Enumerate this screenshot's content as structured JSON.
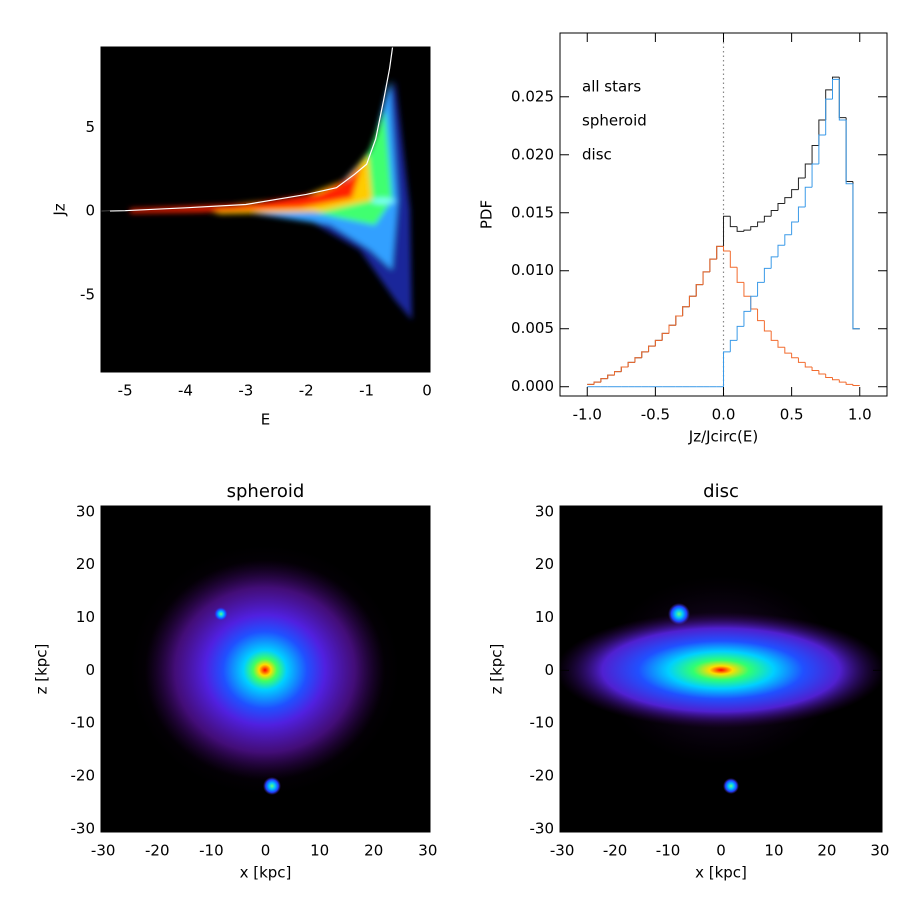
{
  "chart_data": [
    {
      "type": "density",
      "x_label": "E",
      "y_label": "Jz",
      "xlim": [
        -5.4,
        0.05
      ],
      "xticks": [
        -5,
        -4,
        -3,
        -2,
        -1,
        0
      ],
      "ylim": [
        -9.6,
        9.8
      ],
      "yticks": [
        -5,
        0,
        5
      ],
      "x": [
        -5.4,
        -5,
        -4,
        -3,
        -2,
        -1.5,
        -1.2,
        -1,
        -0.85,
        -0.72,
        -0.62,
        -0.57
      ],
      "series": [
        {
          "color": "#ffffff",
          "values": [
            0,
            0.03,
            0.2,
            0.4,
            1.0,
            1.4,
            2.2,
            2.8,
            4.3,
            6.6,
            8.5,
            9.8
          ]
        }
      ]
    },
    {
      "type": "histogram",
      "x_label": "Jz/Jcirc(E)",
      "y_label": "PDF",
      "xlim": [
        -1.2,
        1.2
      ],
      "xticks": [
        {
          "value": -1,
          "label": "-1.0"
        },
        -0.5,
        {
          "value": 0,
          "label": "0.0"
        },
        0.5,
        {
          "value": 1,
          "label": "1.0"
        }
      ],
      "ylim": [
        -0.0008,
        0.0305
      ],
      "yticks": [
        {
          "value": 0,
          "label": "0.000"
        },
        {
          "value": 0.005,
          "label": "0.005"
        },
        {
          "value": 0.01,
          "label": "0.010"
        },
        {
          "value": 0.015,
          "label": "0.015"
        },
        {
          "value": 0.02,
          "label": "0.020"
        },
        {
          "value": 0.025,
          "label": "0.025"
        }
      ],
      "vline": 0,
      "bins": [
        -1,
        -0.95,
        -0.9,
        -0.85,
        -0.8,
        -0.75,
        -0.7,
        -0.65,
        -0.6,
        -0.55,
        -0.5,
        -0.45,
        -0.4,
        -0.35,
        -0.3,
        -0.25,
        -0.2,
        -0.15,
        -0.1,
        -0.05,
        0,
        0.05,
        0.1,
        0.15,
        0.2,
        0.25,
        0.3,
        0.35,
        0.4,
        0.45,
        0.5,
        0.55,
        0.6,
        0.65,
        0.7,
        0.75,
        0.8,
        0.85,
        0.9,
        0.95,
        1
      ],
      "series": [
        {
          "name": "all stars",
          "color": "#222222",
          "values": [
            0.0002,
            0.0004,
            0.0007,
            0.001,
            0.0013,
            0.0017,
            0.0021,
            0.0025,
            0.003,
            0.0035,
            0.004,
            0.0046,
            0.0053,
            0.0061,
            0.0069,
            0.0078,
            0.0088,
            0.0099,
            0.011,
            0.0121,
            0.0147,
            0.0138,
            0.0134,
            0.0135,
            0.0138,
            0.0142,
            0.0147,
            0.0152,
            0.0158,
            0.0163,
            0.017,
            0.018,
            0.0192,
            0.0208,
            0.023,
            0.0256,
            0.0267,
            0.0232,
            0.0177,
            0.005
          ]
        },
        {
          "name": "spheroid",
          "color": "#f26b2e",
          "values": [
            0.0002,
            0.0004,
            0.0007,
            0.001,
            0.0013,
            0.0017,
            0.0021,
            0.0025,
            0.003,
            0.0035,
            0.004,
            0.0046,
            0.0053,
            0.0061,
            0.0069,
            0.0078,
            0.0088,
            0.0099,
            0.011,
            0.0121,
            0.0117,
            0.0103,
            0.009,
            0.0078,
            0.0067,
            0.0057,
            0.0048,
            0.004,
            0.0034,
            0.0029,
            0.0025,
            0.0021,
            0.0017,
            0.0014,
            0.0011,
            0.0008,
            0.0006,
            0.0004,
            0.0002,
            0.0001
          ]
        },
        {
          "name": "disc",
          "color": "#3a9ae8",
          "values": [
            0,
            0,
            0,
            0,
            0,
            0,
            0,
            0,
            0,
            0,
            0,
            0,
            0,
            0,
            0,
            0,
            0,
            0,
            0,
            0,
            0.003,
            0.004,
            0.0052,
            0.0065,
            0.0078,
            0.009,
            0.0102,
            0.0112,
            0.0122,
            0.0131,
            0.0142,
            0.0155,
            0.0172,
            0.0192,
            0.0217,
            0.0248,
            0.0265,
            0.023,
            0.0175,
            0.005
          ]
        }
      ]
    },
    {
      "type": "image",
      "title": "spheroid",
      "x_label": "x [kpc]",
      "y_label": "z [kpc]",
      "xlim": [
        -30.4,
        30.4
      ],
      "xticks": [
        -30,
        -20,
        -10,
        0,
        10,
        20,
        30
      ],
      "ylim": [
        -30.6,
        31.1
      ],
      "yticks": [
        -30,
        -20,
        -10,
        0,
        10,
        20,
        30
      ]
    },
    {
      "type": "image",
      "title": "disc",
      "x_label": "x [kpc]",
      "y_label": "z [kpc]",
      "xlim": [
        -30.4,
        30.4
      ],
      "xticks": [
        -30,
        -20,
        -10,
        0,
        10,
        20,
        30
      ],
      "ylim": [
        -30.6,
        31.1
      ],
      "yticks": [
        -30,
        -20,
        -10,
        0,
        10,
        20,
        30
      ]
    }
  ]
}
